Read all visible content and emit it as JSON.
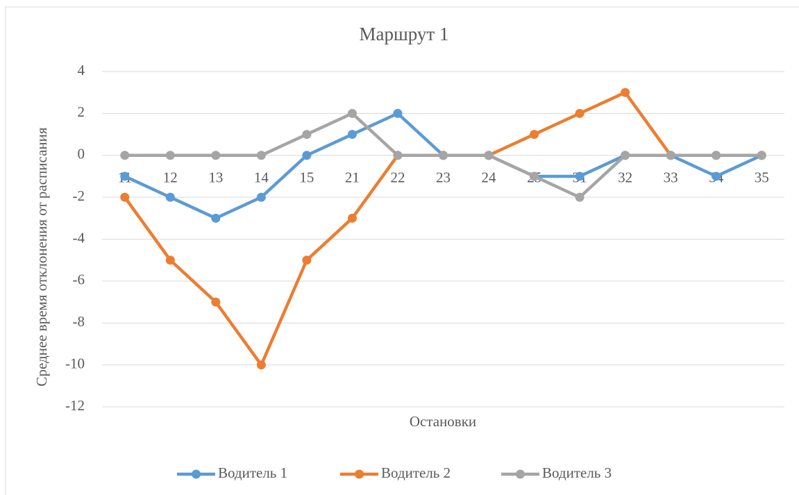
{
  "chart_data": {
    "type": "line",
    "title": "Маршрут 1",
    "x_label": "Остановки",
    "y_label": "Среднее время отклонения от расписания",
    "categories": [
      "11",
      "12",
      "13",
      "14",
      "15",
      "21",
      "22",
      "23",
      "24",
      "25",
      "31",
      "32",
      "33",
      "34",
      "35"
    ],
    "series": [
      {
        "name": "Водитель 1",
        "color": "#5b9bd5",
        "values": [
          -1,
          -2,
          -3,
          -2,
          0,
          1,
          2,
          0,
          0,
          -1,
          -1,
          0,
          0,
          -1,
          0
        ]
      },
      {
        "name": "Водитель 2",
        "color": "#ed7d31",
        "values": [
          -2,
          -5,
          -7,
          -10,
          -5,
          -3,
          0,
          0,
          0,
          1,
          2,
          3,
          0,
          0,
          0
        ]
      },
      {
        "name": "Водитель 3",
        "color": "#a5a5a5",
        "values": [
          0,
          0,
          0,
          0,
          1,
          2,
          0,
          0,
          0,
          -1,
          -2,
          0,
          0,
          0,
          0
        ]
      }
    ],
    "ylim": [
      -12,
      4
    ],
    "yticks": [
      -12,
      -10,
      -8,
      -6,
      -4,
      -2,
      0,
      2,
      4
    ],
    "grid": true,
    "legend": "bottom"
  }
}
